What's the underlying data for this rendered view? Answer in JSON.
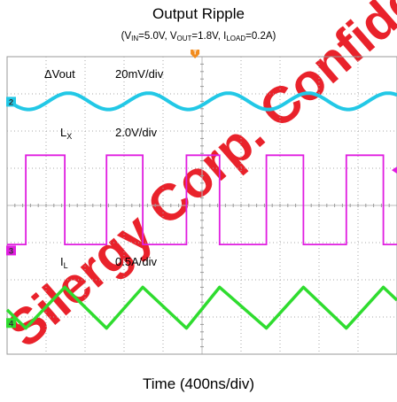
{
  "chart_data": {
    "type": "line",
    "title": "Output Ripple",
    "subtitle": {
      "vin_prefix": "(V",
      "vin_sub": "IN",
      "vin_value": "=5.0V, ",
      "vout_prefix": "V",
      "vout_sub": "OUT",
      "vout_value": "=1.8V, ",
      "iload_prefix": "I",
      "iload_sub": "LOAD",
      "iload_value": "=0.2A)"
    },
    "xlabel": "Time (400ns/div)",
    "grid": true,
    "divisions": {
      "x": 10,
      "y": 8
    },
    "trigger_marker": "T",
    "channels": [
      {
        "marker": "2",
        "label": "ΔVout",
        "label_sub": "",
        "scale": "20mV/div",
        "color": "#22c8e6",
        "waveform": "ripple",
        "offset_div": 2.8,
        "amplitude_div": 0.22,
        "valley_times_div": [
          0.55,
          2.6,
          4.65,
          6.7,
          8.75
        ]
      },
      {
        "marker": "3",
        "label": "L",
        "label_sub": "X",
        "scale": "2.0V/div",
        "color": "#e01ee0",
        "waveform": "square",
        "high_div": 1.35,
        "low_div": -1.05,
        "rising_edges_div": [
          0.48,
          2.55,
          4.6,
          6.65,
          8.7
        ],
        "falling_edges_div": [
          1.48,
          3.48,
          5.45,
          7.6,
          9.65
        ]
      },
      {
        "marker": "4",
        "label": "I",
        "label_sub": "L",
        "scale": "0.5A/div",
        "color": "#2fdc2f",
        "waveform": "triangle",
        "offset_div": -2.75,
        "amplitude_div": 0.55,
        "peak_times_div": [
          1.48,
          3.48,
          5.45,
          7.6,
          9.65
        ],
        "valley_times_div": [
          0.48,
          2.55,
          4.6,
          6.65,
          8.7
        ]
      }
    ]
  },
  "watermark": "Silergy Corp. Confidential"
}
